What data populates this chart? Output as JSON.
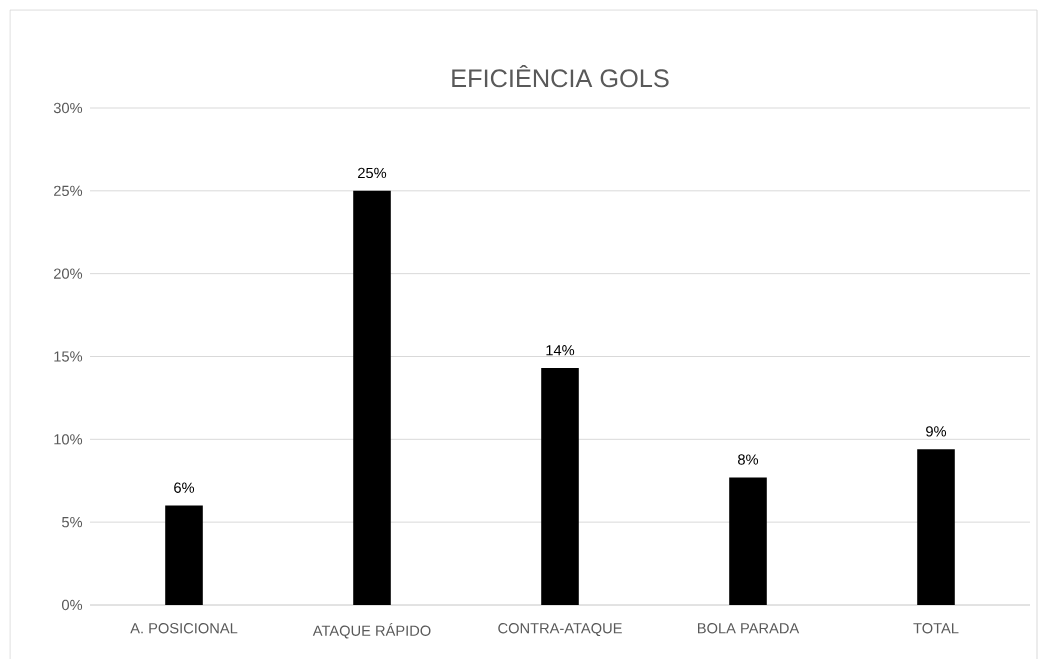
{
  "chart_data": {
    "type": "bar",
    "title": "EFICIÊNCIA GOLS",
    "categories": [
      "A. POSICIONAL",
      "ATAQUE RÁPIDO",
      "CONTRA-ATAQUE",
      "BOLA PARADA",
      "TOTAL"
    ],
    "values": [
      6.0,
      25.0,
      14.3,
      7.7,
      9.4
    ],
    "value_labels": [
      "6%",
      "25%",
      "14%",
      "8%",
      "9%"
    ],
    "color": "#000000",
    "ylim": [
      0,
      30
    ],
    "yticks": [
      {
        "value": 0,
        "label": "0%"
      },
      {
        "value": 5,
        "label": "5%"
      },
      {
        "value": 10,
        "label": "10%"
      },
      {
        "value": 15,
        "label": "15%"
      },
      {
        "value": 20,
        "label": "20%"
      },
      {
        "value": 25,
        "label": "25%"
      },
      {
        "value": 30,
        "label": "30%"
      }
    ],
    "grid": "y"
  }
}
